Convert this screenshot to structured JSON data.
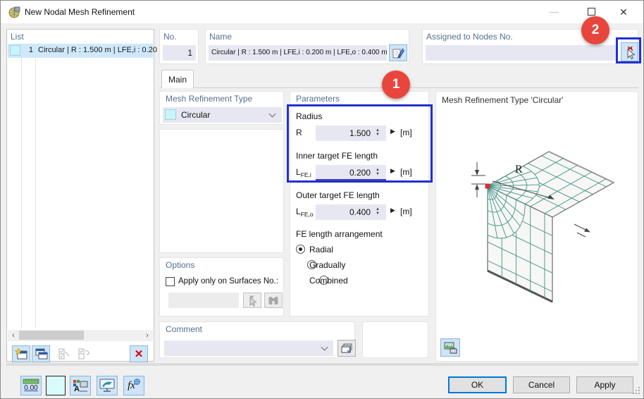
{
  "window": {
    "title": "New Nodal Mesh Refinement"
  },
  "titlebar": {
    "minimize_glyph": "—",
    "close_glyph": "✕"
  },
  "list": {
    "header": "List",
    "items": [
      {
        "no": "1",
        "label": "Circular | R : 1.500 m | LFE,i : 0.20"
      }
    ]
  },
  "header_fields": {
    "no": {
      "label": "No.",
      "value": "1"
    },
    "name": {
      "label": "Name",
      "value": "Circular | R : 1.500 m | LFE,i : 0.200 m | LFE,o : 0.400 m"
    },
    "assigned": {
      "label": "Assigned to Nodes No.",
      "value": ""
    }
  },
  "tabs": {
    "main": "Main"
  },
  "type_section": {
    "header": "Mesh Refinement Type",
    "value": "Circular"
  },
  "parameters": {
    "header": "Parameters",
    "radius_group": "Radius",
    "radius": {
      "sym": "R",
      "sub": "",
      "value": "1.500",
      "unit": "[m]"
    },
    "inner_group": "Inner target FE length",
    "inner": {
      "sym": "L",
      "sub": "FE,i",
      "value": "0.200",
      "unit": "[m]"
    },
    "outer_group": "Outer target FE length",
    "outer": {
      "sym": "L",
      "sub": "FE,o",
      "value": "0.400",
      "unit": "[m]"
    },
    "arrangement": {
      "header": "FE length arrangement",
      "options": [
        "Radial",
        "Gradually",
        "Combined"
      ],
      "selected": "Radial"
    }
  },
  "options_section": {
    "header": "Options",
    "apply_label": "Apply only on Surfaces No.:",
    "surfaces_value": ""
  },
  "comment_section": {
    "header": "Comment",
    "value": ""
  },
  "preview": {
    "header": "Mesh Refinement Type 'Circular'",
    "radius_label": "R"
  },
  "footer": {
    "ok": "OK",
    "cancel": "Cancel",
    "apply": "Apply"
  },
  "annotations": {
    "step_1": "1",
    "step_2": "2"
  },
  "toolbar": {
    "decimal": "0.00",
    "display_letter": "A",
    "fx": "fx"
  },
  "colors": {
    "section_header": "#54708c",
    "field_bg": "#e7e7f1",
    "selection_bg": "#cfe8fb",
    "swatch_cyan": "#c9f4f8",
    "mesh_green": "#3f9488",
    "annotation_red": "#e8463c",
    "annotation_blue": "#2230cf",
    "ok_focus_border": "#0078d7",
    "node_red": "#d62f2f"
  }
}
